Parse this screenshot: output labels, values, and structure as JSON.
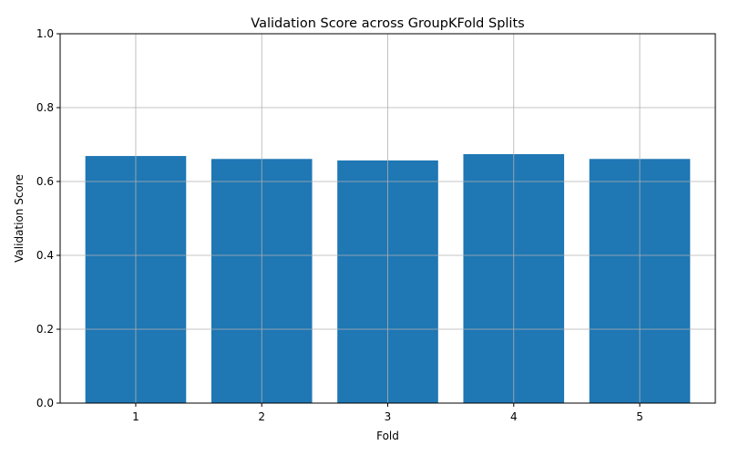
{
  "chart_data": {
    "type": "bar",
    "title": "Validation Score across GroupKFold Splits",
    "xlabel": "Fold",
    "ylabel": "Validation Score",
    "categories": [
      "1",
      "2",
      "3",
      "4",
      "5"
    ],
    "values": [
      0.669,
      0.661,
      0.657,
      0.674,
      0.661
    ],
    "ylim": [
      0,
      1.0
    ],
    "yticks": [
      "0.0",
      "0.2",
      "0.4",
      "0.6",
      "0.8",
      "1.0"
    ],
    "grid": true,
    "bar_color": "#1f77b4",
    "grid_color": "#b0b0b0"
  }
}
